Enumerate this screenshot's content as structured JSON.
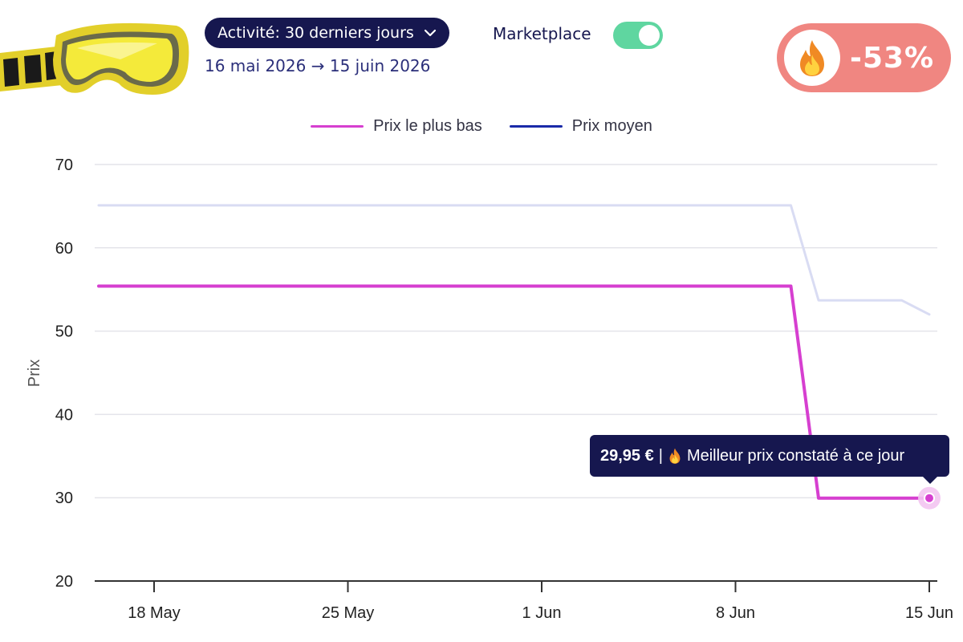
{
  "header": {
    "activity_label": "Activité: 30 derniers jours",
    "date_start": "16 mai 2026",
    "date_arrow": "→",
    "date_end": "15 juin 2026",
    "marketplace_label": "Marketplace",
    "marketplace_enabled": true,
    "discount": "-53%"
  },
  "tooltip": {
    "price": "29,95 €",
    "separator": "|",
    "message": "Meilleur prix constaté à ce jour"
  },
  "colors": {
    "lowest": "#d63fd0",
    "average": "#1a2aa8",
    "average_faded": "#d9dcf3",
    "toggle": "#5fd6a0",
    "badge": "#f08681",
    "navy": "#16174f"
  },
  "icons": [
    "fire-icon",
    "chevron-down-icon"
  ],
  "chart_data": {
    "type": "line",
    "ylabel": "Prix",
    "ylim": [
      20,
      70
    ],
    "yticks": [
      20,
      30,
      40,
      50,
      60,
      70
    ],
    "xlim": [
      "2026-05-15",
      "2026-06-15"
    ],
    "xticks": [
      {
        "date": "2026-05-18",
        "label": "18 May"
      },
      {
        "date": "2026-05-25",
        "label": "25 May"
      },
      {
        "date": "2026-06-01",
        "label": "1 Jun"
      },
      {
        "date": "2026-06-08",
        "label": "8 Jun"
      },
      {
        "date": "2026-06-15",
        "label": "15 Jun"
      }
    ],
    "grid": true,
    "legend_position": "top-center",
    "series": [
      {
        "name": "Prix le plus bas",
        "points": [
          {
            "x": "2026-05-16",
            "y": 55.4
          },
          {
            "x": "2026-06-10",
            "y": 55.4
          },
          {
            "x": "2026-06-11",
            "y": 29.95
          },
          {
            "x": "2026-06-15",
            "y": 29.95
          }
        ]
      },
      {
        "name": "Prix moyen",
        "points": [
          {
            "x": "2026-05-16",
            "y": 65.1
          },
          {
            "x": "2026-06-10",
            "y": 65.1
          },
          {
            "x": "2026-06-11",
            "y": 53.7
          },
          {
            "x": "2026-06-14",
            "y": 53.7
          },
          {
            "x": "2026-06-15",
            "y": 52.0
          }
        ]
      }
    ],
    "highlight": {
      "series": "Prix le plus bas",
      "x": "2026-06-15",
      "y": 29.95
    }
  }
}
